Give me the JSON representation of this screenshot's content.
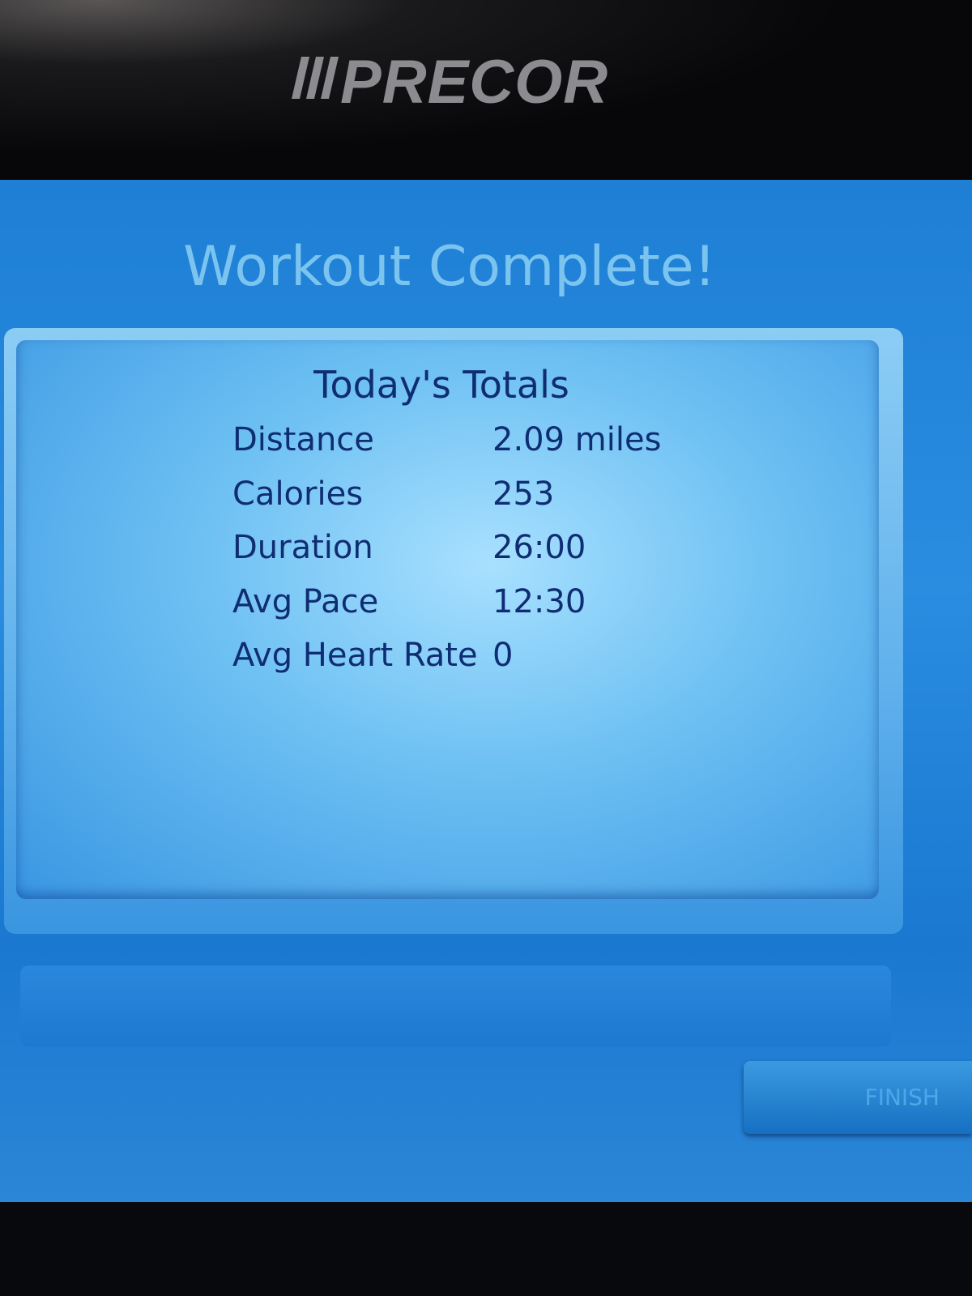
{
  "header": {
    "brand": "PRECOR"
  },
  "screen": {
    "title": "Workout Complete!",
    "panel": {
      "title": "Today's Totals",
      "rows": [
        [
          "Distance",
          "2.09 miles"
        ],
        [
          "Calories",
          "253"
        ],
        [
          "Duration",
          "26:00"
        ],
        [
          "Avg Pace",
          "12:30"
        ],
        [
          "Avg Heart Rate",
          "0"
        ]
      ]
    },
    "button": "FINISH"
  }
}
